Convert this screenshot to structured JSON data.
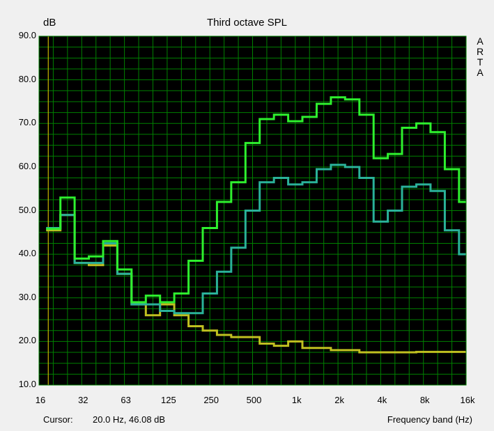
{
  "brand": "A\nR\nT\nA",
  "status": {
    "cursor_label": "Cursor:",
    "cursor_value": "20.0 Hz, 46.08 dB",
    "band_label": "Frequency band (Hz)"
  },
  "colors": {
    "background": "#000000",
    "grid": "#008000",
    "series_upper": "#2ef02e",
    "series_middle": "#2ab29a",
    "series_lower": "#c0c020",
    "cursor": "#c8b400"
  },
  "chart_data": {
    "type": "line",
    "title": "Third octave SPL",
    "ylabel": "dB",
    "xlabel": "",
    "ylim": [
      10,
      90
    ],
    "yticks": [
      "10.0",
      "20.0",
      "30.0",
      "40.0",
      "50.0",
      "60.0",
      "70.0",
      "80.0",
      "90.0"
    ],
    "xticks": [
      "16",
      "32",
      "63",
      "125",
      "250",
      "500",
      "1k",
      "2k",
      "4k",
      "8k",
      "16k"
    ],
    "x_scale": "log (third-octave bands)",
    "grid": true,
    "cursor_band": "20",
    "bands": [
      "16",
      "20",
      "25",
      "31.5",
      "40",
      "50",
      "63",
      "80",
      "100",
      "125",
      "160",
      "200",
      "250",
      "315",
      "400",
      "500",
      "630",
      "800",
      "1k",
      "1.25k",
      "1.6k",
      "2k",
      "2.5k",
      "3.15k",
      "4k",
      "5k",
      "6.3k",
      "8k",
      "10k",
      "12.5k",
      "16k"
    ],
    "series": [
      {
        "values": [
          null,
          45.8,
          53.0,
          39.0,
          39.5,
          43.0,
          36.5,
          29.0,
          30.5,
          29.0,
          31.0,
          38.5,
          46.0,
          52.0,
          56.5,
          65.5,
          71.0,
          72.0,
          70.5,
          71.5,
          74.5,
          76.0,
          75.5,
          72.0,
          62.0,
          63.0,
          69.0,
          70.0,
          68.0,
          59.5,
          52.0
        ]
      },
      {
        "values": [
          null,
          46.0,
          49.0,
          38.0,
          38.0,
          42.5,
          35.5,
          28.5,
          28.5,
          27.0,
          26.5,
          26.5,
          31.0,
          36.0,
          41.5,
          50.0,
          56.5,
          57.5,
          56.0,
          56.5,
          59.5,
          60.5,
          60.0,
          57.5,
          47.5,
          50.0,
          55.5,
          56.0,
          54.5,
          45.5,
          40.0
        ]
      },
      {
        "values": [
          null,
          45.5,
          49.0,
          38.0,
          37.5,
          42.0,
          35.5,
          28.5,
          26.0,
          28.5,
          26.0,
          23.5,
          22.5,
          21.5,
          21.0,
          21.0,
          19.5,
          19.0,
          20.0,
          18.5,
          18.5,
          18.0,
          18.0,
          17.5,
          17.5,
          17.5,
          17.5,
          17.6,
          17.6,
          17.6,
          17.6
        ]
      }
    ]
  }
}
